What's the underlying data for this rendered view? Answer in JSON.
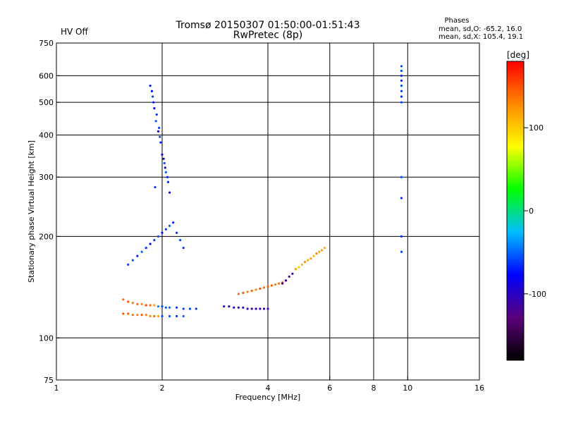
{
  "header": {
    "hv_status": "HV Off",
    "hv_color": "#cc0000",
    "title_line1": "Tromsø 20150307 01:50:00-01:51:43",
    "title_line2": "RwPretec (8p)",
    "info_heading": "Phases",
    "info_line1": "mean, sd,O: -65.2, 16.0",
    "info_line2": "mean, sd,X: 105.4, 19.1"
  },
  "chart_data": {
    "type": "scatter",
    "xlabel": "Frequency [MHz]",
    "ylabel": "Stationary phase Virtual Height [km]",
    "x_scale": "log",
    "y_scale": "log",
    "xlim": [
      1,
      16
    ],
    "ylim": [
      75,
      750
    ],
    "x_ticks": [
      1,
      2,
      4,
      6,
      8,
      10,
      16
    ],
    "x_tick_labels": [
      "1",
      "2",
      "4",
      "6",
      "8",
      "10",
      "16"
    ],
    "y_ticks": [
      75,
      100,
      200,
      300,
      400,
      500,
      600,
      750
    ],
    "y_tick_labels": [
      "75",
      "100",
      "200",
      "300",
      "400",
      "500",
      "600",
      "750"
    ],
    "grid_x": [
      2,
      4,
      6,
      8,
      10
    ],
    "grid_y": [
      100,
      200,
      300,
      400,
      500,
      600
    ],
    "grid": true,
    "colorbar": {
      "label": "[deg]",
      "ticks": [
        100,
        0,
        -100
      ],
      "tick_labels": [
        "100",
        "0",
        "-100"
      ],
      "min": -180,
      "max": 180,
      "colors": [
        "#000000",
        "#5a007a",
        "#0000ff",
        "#00bfff",
        "#00ff00",
        "#ffff00",
        "#ff8800",
        "#ff0000"
      ]
    },
    "series": [
      {
        "x": [
          1.85,
          1.88,
          1.9,
          1.92,
          1.95,
          1.98,
          2.0,
          2.03,
          2.05,
          2.08,
          2.1,
          1.87,
          1.93,
          1.97,
          2.02,
          2.07,
          1.89,
          1.96,
          2.04,
          1.91
        ],
        "y": [
          560,
          520,
          480,
          440,
          410,
          380,
          350,
          330,
          310,
          290,
          270,
          540,
          460,
          395,
          340,
          300,
          500,
          420,
          320,
          280
        ],
        "phase": [
          -70,
          -60,
          -75,
          -55,
          -80,
          -65,
          -90,
          -60,
          -50,
          -70,
          -85,
          -75,
          -62,
          -58,
          -95,
          -66,
          -72,
          -60,
          -88,
          -64
        ]
      },
      {
        "x": [
          1.6,
          1.65,
          1.7,
          1.75,
          1.8,
          1.85,
          1.9,
          1.95,
          2.0,
          2.05,
          2.1,
          2.15,
          2.2,
          2.25,
          2.3
        ],
        "y": [
          165,
          170,
          175,
          180,
          185,
          190,
          195,
          200,
          205,
          210,
          215,
          220,
          205,
          195,
          185
        ],
        "phase": [
          -60,
          -55,
          -70,
          -50,
          -65,
          -80,
          -60,
          -55,
          -75,
          -60,
          -50,
          -70,
          -65,
          -58,
          -62
        ]
      },
      {
        "x": [
          1.55,
          1.6,
          1.65,
          1.7,
          1.75,
          1.8,
          1.85,
          1.9,
          1.95,
          2.0,
          2.05,
          2.1,
          2.2,
          2.3,
          2.4,
          2.5
        ],
        "y": [
          130,
          128,
          127,
          126,
          126,
          125,
          125,
          125,
          124,
          124,
          123,
          123,
          123,
          122,
          122,
          122
        ],
        "phase": [
          140,
          150,
          135,
          145,
          130,
          155,
          140,
          120,
          -40,
          -60,
          -55,
          -50,
          -65,
          -60,
          -58,
          -62
        ]
      },
      {
        "x": [
          1.55,
          1.6,
          1.65,
          1.7,
          1.75,
          1.8,
          1.85,
          1.9,
          1.95,
          2.0,
          2.1,
          2.2,
          2.3
        ],
        "y": [
          118,
          118,
          117,
          117,
          117,
          117,
          116,
          116,
          116,
          116,
          116,
          116,
          116
        ],
        "phase": [
          150,
          145,
          140,
          135,
          150,
          130,
          125,
          140,
          115,
          -60,
          -55,
          -65,
          -50
        ]
      },
      {
        "x": [
          3.0,
          3.1,
          3.2,
          3.3,
          3.4,
          3.5,
          3.6,
          3.7,
          3.8,
          3.9,
          4.0
        ],
        "y": [
          124,
          124,
          123,
          123,
          123,
          122,
          122,
          122,
          122,
          122,
          122
        ],
        "phase": [
          -100,
          -110,
          -95,
          -105,
          -90,
          -100,
          -115,
          -95,
          -100,
          -105,
          -110
        ]
      },
      {
        "x": [
          3.3,
          3.4,
          3.5,
          3.6,
          3.7,
          3.8,
          3.9,
          4.0,
          4.1,
          4.2,
          4.3,
          4.4,
          4.5
        ],
        "y": [
          135,
          136,
          137,
          138,
          139,
          140,
          141,
          142,
          143,
          144,
          145,
          146,
          148
        ],
        "phase": [
          140,
          150,
          135,
          145,
          130,
          155,
          140,
          145,
          150,
          135,
          140,
          145,
          150
        ]
      },
      {
        "x": [
          4.4,
          4.5,
          4.6,
          4.7,
          4.8,
          4.9,
          5.0,
          5.1,
          5.2,
          5.3,
          5.4,
          5.5,
          5.6,
          5.7,
          5.8
        ],
        "y": [
          145,
          148,
          152,
          155,
          160,
          162,
          165,
          168,
          170,
          172,
          175,
          178,
          180,
          182,
          185
        ],
        "phase": [
          -120,
          -110,
          -125,
          -115,
          120,
          100,
          110,
          125,
          115,
          120,
          105,
          130,
          115,
          120,
          110
        ]
      },
      {
        "x": [
          9.6,
          9.6,
          9.6,
          9.6,
          9.6,
          9.6,
          9.6,
          9.6,
          9.6,
          9.6,
          9.6,
          9.6
        ],
        "y": [
          640,
          620,
          600,
          580,
          560,
          540,
          520,
          500,
          300,
          260,
          200,
          180
        ],
        "phase": [
          -60,
          -55,
          -65,
          -70,
          -58,
          -62,
          -66,
          -60,
          -55,
          -70,
          -65,
          -60
        ]
      }
    ]
  }
}
